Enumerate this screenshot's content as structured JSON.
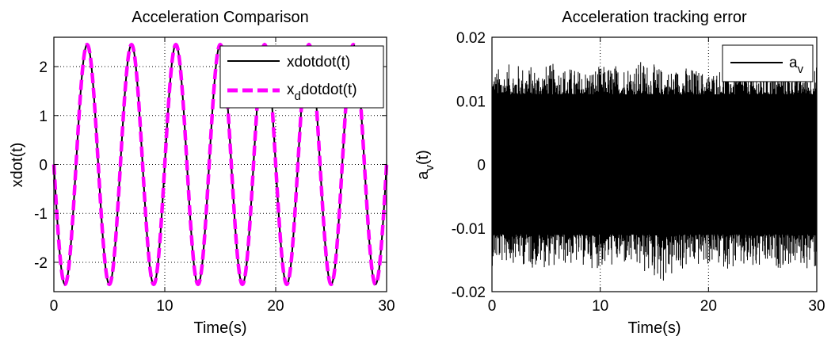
{
  "chart_data": [
    {
      "type": "line",
      "title": "Acceleration Comparison",
      "xlabel": "Time(s)",
      "ylabel": "xdot(t)",
      "xlim": [
        0,
        30
      ],
      "ylim": [
        -2.6,
        2.6
      ],
      "x_ticks": [
        0,
        10,
        20,
        30
      ],
      "x_tick_labels": [
        "0",
        "10",
        "20",
        "30"
      ],
      "y_ticks": [
        2,
        1,
        0,
        -1,
        -2
      ],
      "y_tick_labels": [
        "2",
        "1",
        "0",
        "-1",
        "-2"
      ],
      "grid": "dotted",
      "legend_position": "top-right",
      "series": [
        {
          "name": "xdotdot(t)",
          "color": "#000000",
          "style": "solid",
          "x": [
            0,
            1,
            2,
            3,
            4,
            5,
            6,
            7,
            8,
            9,
            10,
            11,
            12,
            13,
            14,
            15,
            16,
            17,
            18,
            19,
            20,
            21,
            22,
            23,
            24,
            25,
            26,
            27,
            28,
            29,
            30
          ],
          "values": [
            0,
            -2.45,
            0,
            2.45,
            0,
            -2.45,
            0,
            2.45,
            0,
            -2.45,
            0,
            2.45,
            0,
            -2.45,
            0,
            2.45,
            0,
            -2.45,
            0,
            2.45,
            0,
            -2.45,
            0,
            2.45,
            0,
            -2.45,
            0,
            2.45,
            0,
            -2.45,
            0
          ]
        },
        {
          "name_parts": [
            "x",
            "d",
            "dotdot(t)"
          ],
          "color": "#ff00ff",
          "style": "dashed",
          "x": [
            0,
            1,
            2,
            3,
            4,
            5,
            6,
            7,
            8,
            9,
            10,
            11,
            12,
            13,
            14,
            15,
            16,
            17,
            18,
            19,
            20,
            21,
            22,
            23,
            24,
            25,
            26,
            27,
            28,
            29,
            30
          ],
          "values": [
            0,
            -2.45,
            0,
            2.45,
            0,
            -2.45,
            0,
            2.45,
            0,
            -2.45,
            0,
            2.45,
            0,
            -2.45,
            0,
            2.45,
            0,
            -2.45,
            0,
            2.45,
            0,
            -2.45,
            0,
            2.45,
            0,
            -2.45,
            0,
            2.45,
            0,
            -2.45,
            0
          ]
        }
      ]
    },
    {
      "type": "line",
      "title": "Acceleration tracking error",
      "xlabel": "Time(s)",
      "ylabel_parts": [
        "a",
        "v",
        "(t)"
      ],
      "xlim": [
        0,
        30
      ],
      "ylim": [
        -0.02,
        0.02
      ],
      "x_ticks": [
        0,
        10,
        20,
        30
      ],
      "x_tick_labels": [
        "0",
        "10",
        "20",
        "30"
      ],
      "y_ticks": [
        0.02,
        0.01,
        0,
        -0.01,
        -0.02
      ],
      "y_tick_labels": [
        "0.02",
        "0.01",
        "0",
        "-0.01",
        "-0.02"
      ],
      "grid": "dotted",
      "legend_position": "top-right",
      "series": [
        {
          "name_parts": [
            "a",
            "v"
          ],
          "color": "#000000",
          "style": "solid",
          "noise_band_upper": 0.011,
          "noise_band_lower": -0.011,
          "x_peaks": [
            0,
            2,
            4,
            6,
            8,
            10,
            12,
            14,
            16,
            18,
            20,
            22,
            24,
            26,
            28,
            30
          ],
          "peaks_upper": [
            0.015,
            0.016,
            0.0155,
            0.016,
            0.015,
            0.0155,
            0.016,
            0.0165,
            0.015,
            0.0155,
            0.0145,
            0.016,
            0.015,
            0.0155,
            0.016,
            0.0155
          ],
          "peaks_lower": [
            -0.016,
            -0.0155,
            -0.0165,
            -0.016,
            -0.016,
            -0.0165,
            -0.016,
            -0.0175,
            -0.019,
            -0.0165,
            -0.016,
            -0.0165,
            -0.0175,
            -0.0165,
            -0.016,
            -0.017
          ]
        }
      ]
    }
  ]
}
